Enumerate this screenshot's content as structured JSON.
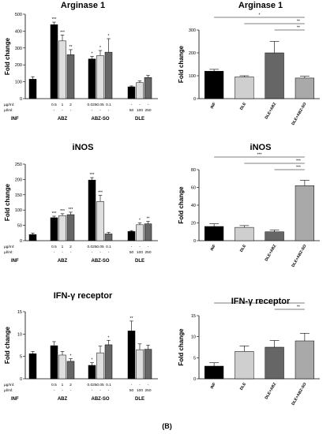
{
  "figure_label": "(B)",
  "colors": {
    "INF": "#000000",
    "low": "#b8b8b8",
    "mid": "#dedede",
    "high": "#666666",
    "DLE": "#cfcfcf",
    "DLE+ABZ": "#666666",
    "DLE+ABZ-SO": "#a9a9a9"
  },
  "chart_data": [
    {
      "type": "bar",
      "title": "Arginase 1",
      "ylabel": "Fold change",
      "ylim": [
        0,
        500
      ],
      "yticks": [
        0,
        100,
        200,
        300,
        400,
        500
      ],
      "dose_header": [
        "µg/ml:",
        "µl/ml:"
      ],
      "groups": [
        {
          "name": "INF",
          "bars": [
            {
              "dose": "",
              "ul": "",
              "value": 115,
              "err": 15,
              "color": "INF",
              "sig": ""
            }
          ]
        },
        {
          "name": "ABZ",
          "bars": [
            {
              "dose": "0.5",
              "ul": "-",
              "value": 438,
              "err": 15,
              "color": "INF",
              "sig": "***"
            },
            {
              "dose": "1",
              "ul": "-",
              "value": 342,
              "err": 35,
              "color": "mid",
              "sig": "***"
            },
            {
              "dose": "2",
              "ul": "-",
              "value": 260,
              "err": 30,
              "color": "high",
              "sig": "**"
            }
          ]
        },
        {
          "name": "ABZ-SO",
          "bars": [
            {
              "dose": "0.025",
              "ul": "-",
              "value": 235,
              "err": 15,
              "color": "INF",
              "sig": "*"
            },
            {
              "dose": "0.05",
              "ul": "-",
              "value": 255,
              "err": 30,
              "color": "mid",
              "sig": "*"
            },
            {
              "dose": "0.1",
              "ul": "-",
              "value": 275,
              "err": 80,
              "color": "high",
              "sig": "*"
            }
          ]
        },
        {
          "name": "DLE",
          "bars": [
            {
              "dose": "-",
              "ul": "50",
              "value": 70,
              "err": 5,
              "color": "INF",
              "sig": ""
            },
            {
              "dose": "-",
              "ul": "100",
              "value": 95,
              "err": 10,
              "color": "mid",
              "sig": ""
            },
            {
              "dose": "-",
              "ul": "250",
              "value": 125,
              "err": 12,
              "color": "high",
              "sig": ""
            }
          ]
        }
      ]
    },
    {
      "type": "bar",
      "title": "Arginase 1",
      "ylabel": "Fold change",
      "ylim": [
        0,
        300
      ],
      "yticks": [
        0,
        100,
        200,
        300
      ],
      "categories": [
        "INF",
        "DLE",
        "DLE+ABZ",
        "DLE+ABZ-SO"
      ],
      "values": [
        120,
        95,
        200,
        90
      ],
      "errors": [
        8,
        5,
        50,
        8
      ],
      "colors": [
        "INF",
        "DLE",
        "DLE+ABZ",
        "DLE+ABZ-SO"
      ],
      "brackets": [
        {
          "from": 0,
          "to": 3,
          "label": "*"
        },
        {
          "from": 1,
          "to": 3,
          "label": "**"
        },
        {
          "from": 2,
          "to": 3,
          "label": "**"
        }
      ]
    },
    {
      "type": "bar",
      "title": "iNOS",
      "ylabel": "Fold change",
      "ylim": [
        0,
        250
      ],
      "yticks": [
        0,
        50,
        100,
        150,
        200,
        250
      ],
      "dose_header": [
        "µg/ml:",
        "µl/ml:"
      ],
      "groups": [
        {
          "name": "INF",
          "bars": [
            {
              "dose": "",
              "ul": "",
              "value": 20,
              "err": 5,
              "color": "INF",
              "sig": ""
            }
          ]
        },
        {
          "name": "ABZ",
          "bars": [
            {
              "dose": "0.5",
              "ul": "-",
              "value": 75,
              "err": 5,
              "color": "INF",
              "sig": "***"
            },
            {
              "dose": "1",
              "ul": "-",
              "value": 82,
              "err": 6,
              "color": "mid",
              "sig": "***"
            },
            {
              "dose": "2",
              "ul": "-",
              "value": 85,
              "err": 8,
              "color": "high",
              "sig": "***"
            }
          ]
        },
        {
          "name": "ABZ-SO",
          "bars": [
            {
              "dose": "0.025",
              "ul": "-",
              "value": 198,
              "err": 8,
              "color": "INF",
              "sig": "***"
            },
            {
              "dose": "0.05",
              "ul": "-",
              "value": 128,
              "err": 20,
              "color": "mid",
              "sig": "***"
            },
            {
              "dose": "0.1",
              "ul": "-",
              "value": 22,
              "err": 5,
              "color": "high",
              "sig": ""
            }
          ]
        },
        {
          "name": "DLE",
          "bars": [
            {
              "dose": "-",
              "ul": "50",
              "value": 30,
              "err": 3,
              "color": "INF",
              "sig": ""
            },
            {
              "dose": "-",
              "ul": "100",
              "value": 52,
              "err": 6,
              "color": "mid",
              "sig": "*"
            },
            {
              "dose": "-",
              "ul": "250",
              "value": 55,
              "err": 8,
              "color": "high",
              "sig": "**"
            }
          ]
        }
      ]
    },
    {
      "type": "bar",
      "title": "iNOS",
      "ylabel": "Fold change",
      "ylim": [
        0,
        80
      ],
      "yticks": [
        0,
        20,
        40,
        60,
        80
      ],
      "categories": [
        "INF",
        "DLE",
        "DLE+ABZ",
        "DLE+ABZ-SO"
      ],
      "values": [
        16,
        15,
        10,
        62
      ],
      "errors": [
        3,
        2,
        2,
        6
      ],
      "colors": [
        "INF",
        "DLE",
        "DLE+ABZ",
        "DLE+ABZ-SO"
      ],
      "brackets": [
        {
          "from": 0,
          "to": 3,
          "label": "***"
        },
        {
          "from": 1,
          "to": 3,
          "label": "***"
        },
        {
          "from": 2,
          "to": 3,
          "label": "***"
        }
      ]
    },
    {
      "type": "bar",
      "title": "IFN-γ receptor",
      "ylabel": "Fold change",
      "ylim": [
        0,
        15
      ],
      "yticks": [
        0,
        5,
        10,
        15
      ],
      "dose_header": [
        "µg/ml:",
        "µl/ml:"
      ],
      "groups": [
        {
          "name": "INF",
          "bars": [
            {
              "dose": "",
              "ul": "",
              "value": 5.6,
              "err": 0.5,
              "color": "INF",
              "sig": ""
            }
          ]
        },
        {
          "name": "ABZ",
          "bars": [
            {
              "dose": "0.5",
              "ul": "-",
              "value": 7.4,
              "err": 0.9,
              "color": "INF",
              "sig": ""
            },
            {
              "dose": "1",
              "ul": "-",
              "value": 5.3,
              "err": 0.8,
              "color": "mid",
              "sig": ""
            },
            {
              "dose": "2",
              "ul": "-",
              "value": 3.9,
              "err": 0.6,
              "color": "high",
              "sig": "*"
            }
          ]
        },
        {
          "name": "ABZ-SO",
          "bars": [
            {
              "dose": "0.025",
              "ul": "-",
              "value": 3.0,
              "err": 0.6,
              "color": "INF",
              "sig": "*"
            },
            {
              "dose": "0.05",
              "ul": "-",
              "value": 5.8,
              "err": 1.5,
              "color": "mid",
              "sig": ""
            },
            {
              "dose": "0.1",
              "ul": "-",
              "value": 7.6,
              "err": 1.0,
              "color": "high",
              "sig": "*"
            }
          ]
        },
        {
          "name": "DLE",
          "bars": [
            {
              "dose": "-",
              "ul": "50",
              "value": 10.7,
              "err": 2.2,
              "color": "INF",
              "sig": "**"
            },
            {
              "dose": "-",
              "ul": "100",
              "value": 6.5,
              "err": 1.3,
              "color": "mid",
              "sig": ""
            },
            {
              "dose": "-",
              "ul": "250",
              "value": 6.6,
              "err": 0.9,
              "color": "high",
              "sig": ""
            }
          ]
        }
      ]
    },
    {
      "type": "bar",
      "title": "IFN-γ receptor",
      "ylabel": "Fold change",
      "ylim": [
        0,
        15
      ],
      "yticks": [
        0,
        5,
        10,
        15
      ],
      "categories": [
        "INF",
        "DLE",
        "DLE+ABZ",
        "DLE+ABZ-SO"
      ],
      "values": [
        3.0,
        6.5,
        7.5,
        9.0
      ],
      "errors": [
        0.8,
        1.3,
        1.6,
        1.8
      ],
      "colors": [
        "INF",
        "DLE",
        "DLE+ABZ",
        "DLE+ABZ-SO"
      ],
      "brackets": [
        {
          "from": 0,
          "to": 3,
          "label": "*"
        },
        {
          "from": 2,
          "to": 3,
          "label": "**"
        }
      ]
    }
  ]
}
